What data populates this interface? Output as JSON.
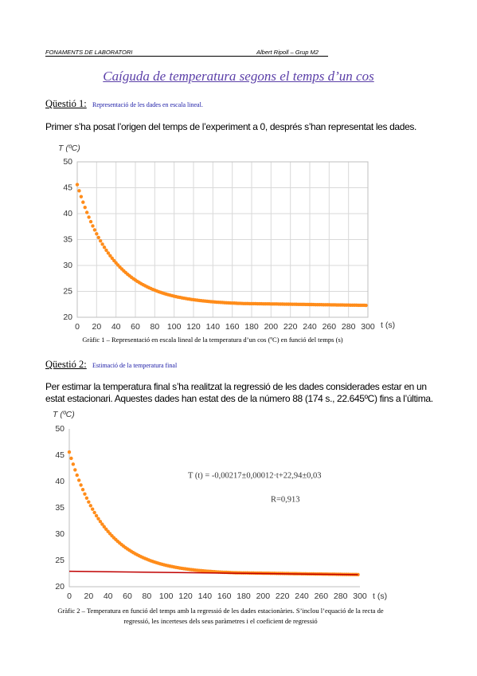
{
  "header": {
    "left": "FONAMENTS DE LABORATORI",
    "right": "Albert Ripoll – Grup M2"
  },
  "title": "Caíguda de temperatura segons el temps d’un cos",
  "sections": [
    {
      "heading": "Qüestió 1:",
      "subheading": "Representació de les dades en escala lineal.",
      "paragraph": "Primer s’ha posat l’origen del temps de l’experiment a 0, després s’han representat les dades."
    },
    {
      "heading": "Qüestió 2:",
      "subheading": "Estimació de la temperatura final",
      "paragraph": "Per estimar la temperatura final s’ha realitzat la regressió de les dades considerades estar en un estat estacionari. Aquestes dades han estat des de la número 88 (174 s., 22.645ºC) fins a l’última."
    }
  ],
  "chart_data": [
    {
      "type": "scatter",
      "ylabel": "T (ºC)",
      "xlabel": "t (s)",
      "caption": "Gràfic 1 – Representació en escala lineal de la temperatura d’un cos (ºC) en funció del temps (s)",
      "xlim": [
        0,
        300
      ],
      "ylim": [
        20,
        50
      ],
      "xticks": [
        0,
        20,
        40,
        60,
        80,
        100,
        120,
        140,
        160,
        180,
        200,
        220,
        240,
        260,
        280,
        300
      ],
      "yticks": [
        20,
        25,
        30,
        35,
        40,
        45,
        50
      ],
      "grid": true,
      "series": [
        {
          "color": "#ff8c1a",
          "x": [
            0,
            2,
            4,
            6,
            8,
            10,
            12,
            14,
            16,
            18,
            20,
            22,
            24,
            26,
            28,
            30,
            32,
            34,
            36,
            38,
            40,
            42,
            44,
            46,
            48,
            50,
            52,
            54,
            56,
            58,
            60,
            62,
            64,
            66,
            68,
            70,
            72,
            74,
            76,
            78,
            80,
            82,
            84,
            86,
            88,
            90,
            92,
            94,
            96,
            98,
            100,
            102,
            104,
            106,
            108,
            110,
            112,
            114,
            116,
            118,
            120,
            122,
            124,
            126,
            128,
            130,
            132,
            134,
            136,
            138,
            140,
            142,
            144,
            146,
            148,
            150,
            152,
            154,
            156,
            158,
            160,
            162,
            164,
            166,
            168,
            170,
            172,
            174,
            176,
            178,
            180,
            182,
            184,
            186,
            188,
            190,
            192,
            194,
            196,
            198,
            200,
            202,
            204,
            206,
            208,
            210,
            212,
            214,
            216,
            218,
            220,
            222,
            224,
            226,
            228,
            230,
            232,
            234,
            236,
            238,
            240,
            242,
            244,
            246,
            248,
            250,
            252,
            254,
            256,
            258,
            260,
            262,
            264,
            266,
            268,
            270,
            272,
            274,
            276,
            278,
            280,
            282,
            284,
            286,
            288,
            290,
            292,
            294,
            296,
            298
          ],
          "values": [
            45.6,
            44.41,
            43.28,
            42.21,
            41.2,
            40.23,
            39.32,
            38.45,
            37.63,
            36.85,
            36.11,
            35.4,
            34.74,
            34.1,
            33.5,
            32.93,
            32.39,
            31.88,
            31.4,
            30.93,
            30.5,
            30.08,
            29.69,
            29.31,
            28.96,
            28.62,
            28.3,
            28.0,
            27.71,
            27.44,
            27.18,
            26.94,
            26.71,
            26.48,
            26.28,
            26.08,
            25.89,
            25.71,
            25.54,
            25.38,
            25.23,
            25.08,
            24.94,
            24.81,
            24.69,
            24.57,
            24.46,
            24.35,
            24.25,
            24.16,
            24.07,
            23.98,
            23.9,
            23.83,
            23.75,
            23.68,
            23.62,
            23.55,
            23.5,
            23.44,
            23.39,
            23.34,
            23.29,
            23.24,
            23.2,
            23.16,
            23.12,
            23.08,
            23.05,
            23.01,
            22.98,
            22.95,
            22.92,
            22.9,
            22.87,
            22.85,
            22.82,
            22.8,
            22.78,
            22.76,
            22.74,
            22.73,
            22.71,
            22.69,
            22.68,
            22.66,
            22.65,
            22.64,
            22.64,
            22.63,
            22.63,
            22.62,
            22.62,
            22.61,
            22.61,
            22.6,
            22.59,
            22.59,
            22.58,
            22.58,
            22.57,
            22.57,
            22.56,
            22.56,
            22.55,
            22.54,
            22.54,
            22.53,
            22.53,
            22.52,
            22.52,
            22.51,
            22.51,
            22.5,
            22.49,
            22.49,
            22.48,
            22.48,
            22.47,
            22.47,
            22.46,
            22.46,
            22.45,
            22.44,
            22.44,
            22.43,
            22.43,
            22.42,
            22.42,
            22.41,
            22.41,
            22.4,
            22.39,
            22.39,
            22.38,
            22.38,
            22.37,
            22.37,
            22.36,
            22.35,
            22.35,
            22.34,
            22.34,
            22.33,
            22.33,
            22.32,
            22.32,
            22.31,
            22.31,
            22.3
          ]
        }
      ]
    },
    {
      "type": "scatter",
      "ylabel": "T (ºC)",
      "xlabel": "t (s)",
      "caption": "Gràfic 2 – Temperatura en funció del temps amb la regressió de les dades estacionàries. S’inclou l’equació de la recta de regressió, les incerteses dels seus paràmetres i el coeficient de regressió",
      "annotations": [
        "T (t) = -0,00217±0,00012·t+22,94±0,03",
        "R=0,913"
      ],
      "xlim": [
        0,
        300
      ],
      "ylim": [
        20,
        50
      ],
      "xticks": [
        0,
        20,
        40,
        60,
        80,
        100,
        120,
        140,
        160,
        180,
        200,
        220,
        240,
        260,
        280,
        300
      ],
      "yticks": [
        20,
        25,
        30,
        35,
        40,
        45,
        50
      ],
      "grid": false,
      "series": [
        {
          "color": "#ff8c1a",
          "x": [
            0,
            2,
            4,
            6,
            8,
            10,
            12,
            14,
            16,
            18,
            20,
            22,
            24,
            26,
            28,
            30,
            32,
            34,
            36,
            38,
            40,
            42,
            44,
            46,
            48,
            50,
            52,
            54,
            56,
            58,
            60,
            62,
            64,
            66,
            68,
            70,
            72,
            74,
            76,
            78,
            80,
            82,
            84,
            86,
            88,
            90,
            92,
            94,
            96,
            98,
            100,
            102,
            104,
            106,
            108,
            110,
            112,
            114,
            116,
            118,
            120,
            122,
            124,
            126,
            128,
            130,
            132,
            134,
            136,
            138,
            140,
            142,
            144,
            146,
            148,
            150,
            152,
            154,
            156,
            158,
            160,
            162,
            164,
            166,
            168,
            170,
            172,
            174,
            176,
            178,
            180,
            182,
            184,
            186,
            188,
            190,
            192,
            194,
            196,
            198,
            200,
            202,
            204,
            206,
            208,
            210,
            212,
            214,
            216,
            218,
            220,
            222,
            224,
            226,
            228,
            230,
            232,
            234,
            236,
            238,
            240,
            242,
            244,
            246,
            248,
            250,
            252,
            254,
            256,
            258,
            260,
            262,
            264,
            266,
            268,
            270,
            272,
            274,
            276,
            278,
            280,
            282,
            284,
            286,
            288,
            290,
            292,
            294,
            296,
            298
          ],
          "values": [
            45.6,
            44.41,
            43.28,
            42.21,
            41.2,
            40.23,
            39.32,
            38.45,
            37.63,
            36.85,
            36.11,
            35.4,
            34.74,
            34.1,
            33.5,
            32.93,
            32.39,
            31.88,
            31.4,
            30.93,
            30.5,
            30.08,
            29.69,
            29.31,
            28.96,
            28.62,
            28.3,
            28.0,
            27.71,
            27.44,
            27.18,
            26.94,
            26.71,
            26.48,
            26.28,
            26.08,
            25.89,
            25.71,
            25.54,
            25.38,
            25.23,
            25.08,
            24.94,
            24.81,
            24.69,
            24.57,
            24.46,
            24.35,
            24.25,
            24.16,
            24.07,
            23.98,
            23.9,
            23.83,
            23.75,
            23.68,
            23.62,
            23.55,
            23.5,
            23.44,
            23.39,
            23.34,
            23.29,
            23.24,
            23.2,
            23.16,
            23.12,
            23.08,
            23.05,
            23.01,
            22.98,
            22.95,
            22.92,
            22.9,
            22.87,
            22.85,
            22.82,
            22.8,
            22.78,
            22.76,
            22.74,
            22.73,
            22.71,
            22.69,
            22.68,
            22.66,
            22.65,
            22.64,
            22.64,
            22.63,
            22.63,
            22.62,
            22.62,
            22.61,
            22.61,
            22.6,
            22.59,
            22.59,
            22.58,
            22.58,
            22.57,
            22.57,
            22.56,
            22.56,
            22.55,
            22.54,
            22.54,
            22.53,
            22.53,
            22.52,
            22.52,
            22.51,
            22.51,
            22.5,
            22.49,
            22.49,
            22.48,
            22.48,
            22.47,
            22.47,
            22.46,
            22.46,
            22.45,
            22.44,
            22.44,
            22.43,
            22.43,
            22.42,
            22.42,
            22.41,
            22.41,
            22.4,
            22.39,
            22.39,
            22.38,
            22.38,
            22.37,
            22.37,
            22.36,
            22.35,
            22.35,
            22.34,
            22.34,
            22.33,
            22.33,
            22.32,
            22.32,
            22.31,
            22.31,
            22.3
          ]
        },
        {
          "type": "line",
          "color": "#c00000",
          "x": [
            0,
            298
          ],
          "values": [
            22.94,
            22.29
          ]
        }
      ]
    }
  ]
}
